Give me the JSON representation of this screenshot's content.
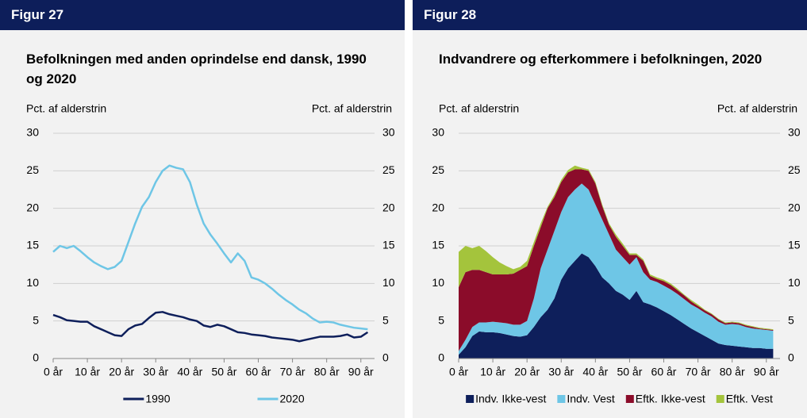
{
  "chart_data": [
    {
      "type": "line",
      "figure_label": "Figur 27",
      "title": "Befolkningen med anden oprindelse end dansk, 1990 og 2020",
      "y_label": "Pct. af alderstrin",
      "y2_label": "Pct. af alderstrin",
      "x": [
        0,
        2,
        4,
        6,
        8,
        10,
        12,
        14,
        16,
        18,
        20,
        22,
        24,
        26,
        28,
        30,
        32,
        34,
        36,
        38,
        40,
        42,
        44,
        46,
        48,
        50,
        52,
        54,
        56,
        58,
        60,
        62,
        64,
        66,
        68,
        70,
        72,
        74,
        76,
        78,
        80,
        82,
        84,
        86,
        88,
        90,
        92
      ],
      "xlim": [
        0,
        94
      ],
      "xticks": [
        {
          "value": 0,
          "label": "0 år"
        },
        {
          "value": 10,
          "label": "10 år"
        },
        {
          "value": 20,
          "label": "20 år"
        },
        {
          "value": 30,
          "label": "30 år"
        },
        {
          "value": 40,
          "label": "40 år"
        },
        {
          "value": 50,
          "label": "50 år"
        },
        {
          "value": 60,
          "label": "60 år"
        },
        {
          "value": 70,
          "label": "70 år"
        },
        {
          "value": 80,
          "label": "80 år"
        },
        {
          "value": 90,
          "label": "90 år"
        }
      ],
      "ylim": [
        0,
        30
      ],
      "yticks": [
        0,
        5,
        10,
        15,
        20,
        25,
        30
      ],
      "y2lim": [
        0,
        30
      ],
      "y2ticks": [
        0,
        5,
        10,
        15,
        20,
        25,
        30
      ],
      "grid": true,
      "legend": "bottom",
      "series": [
        {
          "name": "1990",
          "color": "#0e1f5b",
          "values": [
            5.8,
            5.5,
            5.1,
            5.0,
            4.9,
            4.9,
            4.3,
            3.9,
            3.5,
            3.1,
            3.0,
            3.9,
            4.4,
            4.6,
            5.4,
            6.1,
            6.2,
            5.9,
            5.7,
            5.5,
            5.2,
            5.0,
            4.4,
            4.2,
            4.5,
            4.3,
            3.9,
            3.5,
            3.4,
            3.2,
            3.1,
            3.0,
            2.8,
            2.7,
            2.6,
            2.5,
            2.3,
            2.5,
            2.7,
            2.9,
            2.9,
            2.9,
            3.0,
            3.2,
            2.8,
            2.9,
            3.5
          ]
        },
        {
          "name": "2020",
          "color": "#6ec6e6",
          "values": [
            14.2,
            15.0,
            14.7,
            15.0,
            14.3,
            13.5,
            12.8,
            12.3,
            11.9,
            12.2,
            13.0,
            15.5,
            18.0,
            20.2,
            21.5,
            23.5,
            25.0,
            25.7,
            25.4,
            25.2,
            23.5,
            20.5,
            18.0,
            16.5,
            15.3,
            14.0,
            12.8,
            14.0,
            13.0,
            10.8,
            10.5,
            10.0,
            9.3,
            8.5,
            7.8,
            7.2,
            6.5,
            6.0,
            5.3,
            4.8,
            4.9,
            4.8,
            4.5,
            4.3,
            4.1,
            4.0,
            3.9
          ]
        }
      ]
    },
    {
      "type": "stacked_area",
      "figure_label": "Figur 28",
      "title": "Indvandrere og efterkommere i befolkningen, 2020",
      "y_label": "Pct. af alderstrin",
      "y2_label": "Pct. af alderstrin",
      "x": [
        0,
        2,
        4,
        6,
        8,
        10,
        12,
        14,
        16,
        18,
        20,
        22,
        24,
        26,
        28,
        30,
        32,
        34,
        36,
        38,
        40,
        42,
        44,
        46,
        48,
        50,
        52,
        54,
        56,
        58,
        60,
        62,
        64,
        66,
        68,
        70,
        72,
        74,
        76,
        78,
        80,
        82,
        84,
        86,
        88,
        90,
        92
      ],
      "xlim": [
        0,
        94
      ],
      "xticks": [
        {
          "value": 0,
          "label": "0 år"
        },
        {
          "value": 10,
          "label": "10 år"
        },
        {
          "value": 20,
          "label": "20 år"
        },
        {
          "value": 30,
          "label": "30 år"
        },
        {
          "value": 40,
          "label": "40 år"
        },
        {
          "value": 50,
          "label": "50 år"
        },
        {
          "value": 60,
          "label": "60 år"
        },
        {
          "value": 70,
          "label": "70 år"
        },
        {
          "value": 80,
          "label": "80 år"
        },
        {
          "value": 90,
          "label": "90 år"
        }
      ],
      "ylim": [
        0,
        30
      ],
      "yticks": [
        0,
        5,
        10,
        15,
        20,
        25,
        30
      ],
      "y2lim": [
        0,
        30
      ],
      "y2ticks": [
        0,
        5,
        10,
        15,
        20,
        25,
        30
      ],
      "grid": true,
      "legend": "bottom",
      "series": [
        {
          "name": "Indv. Ikke-vest",
          "color": "#0e1f5b",
          "values": [
            0.5,
            1.5,
            3.0,
            3.6,
            3.5,
            3.5,
            3.4,
            3.2,
            3.0,
            2.9,
            3.1,
            4.2,
            5.5,
            6.5,
            8.0,
            10.5,
            12.0,
            13.0,
            14.0,
            13.5,
            12.3,
            10.8,
            10.0,
            9.0,
            8.5,
            7.8,
            9.0,
            7.5,
            7.2,
            6.8,
            6.3,
            5.8,
            5.2,
            4.6,
            4.0,
            3.5,
            3.0,
            2.5,
            2.0,
            1.8,
            1.7,
            1.6,
            1.5,
            1.4,
            1.4,
            1.3,
            1.3
          ]
        },
        {
          "name": "Indv. Vest",
          "color": "#6ec6e6",
          "values": [
            0.5,
            1.0,
            1.2,
            1.2,
            1.3,
            1.4,
            1.4,
            1.5,
            1.5,
            1.6,
            1.9,
            3.8,
            6.5,
            8.0,
            9.0,
            9.0,
            9.5,
            9.5,
            9.3,
            9.0,
            8.2,
            7.7,
            6.5,
            5.5,
            5.0,
            4.7,
            4.5,
            4.0,
            3.3,
            3.4,
            3.4,
            3.4,
            3.4,
            3.3,
            3.2,
            3.2,
            3.1,
            3.1,
            2.9,
            2.7,
            2.9,
            2.9,
            2.7,
            2.6,
            2.5,
            2.5,
            2.4
          ]
        },
        {
          "name": "Eftk. Ikke-vest",
          "color": "#8b0c2a",
          "values": [
            8.5,
            9.0,
            7.6,
            7.0,
            6.7,
            6.3,
            6.4,
            6.5,
            6.8,
            7.3,
            7.3,
            7.0,
            5.5,
            5.5,
            4.5,
            4.0,
            3.3,
            2.7,
            1.9,
            2.5,
            2.8,
            1.8,
            1.3,
            1.7,
            1.5,
            1.3,
            0.3,
            1.5,
            0.5,
            0.4,
            0.6,
            0.6,
            0.5,
            0.5,
            0.4,
            0.3,
            0.3,
            0.3,
            0.3,
            0.2,
            0.2,
            0.2,
            0.2,
            0.2,
            0.1,
            0.1,
            0.1
          ]
        },
        {
          "name": "Eftk. Vest",
          "color": "#a4c43c",
          "values": [
            4.7,
            3.5,
            2.9,
            3.2,
            2.8,
            2.3,
            1.6,
            1.1,
            0.6,
            0.4,
            0.7,
            0.5,
            0.5,
            0.2,
            0.3,
            0.3,
            0.3,
            0.5,
            0.2,
            0.2,
            0.2,
            0.2,
            0.2,
            0.3,
            0.3,
            0.2,
            0.2,
            0.2,
            0.2,
            0.2,
            0.2,
            0.2,
            0.2,
            0.1,
            0.2,
            0.2,
            0.1,
            0.1,
            0.1,
            0.1,
            0.1,
            0.1,
            0.1,
            0.1,
            0.1,
            0.1,
            0.1
          ]
        }
      ]
    }
  ]
}
